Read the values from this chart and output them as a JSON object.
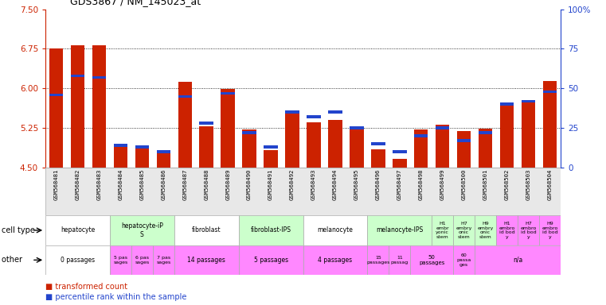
{
  "title": "GDS3867 / NM_145023_at",
  "samples": [
    "GSM568481",
    "GSM568482",
    "GSM568483",
    "GSM568484",
    "GSM568485",
    "GSM568486",
    "GSM568487",
    "GSM568488",
    "GSM568489",
    "GSM568490",
    "GSM568491",
    "GSM568492",
    "GSM568493",
    "GSM568494",
    "GSM568495",
    "GSM568496",
    "GSM568497",
    "GSM568498",
    "GSM568499",
    "GSM568500",
    "GSM568501",
    "GSM568502",
    "GSM568503",
    "GSM568504"
  ],
  "red_values": [
    6.75,
    6.82,
    6.81,
    4.93,
    4.88,
    4.77,
    6.13,
    5.28,
    5.99,
    5.23,
    4.83,
    5.55,
    5.36,
    5.41,
    5.26,
    4.85,
    4.67,
    5.22,
    5.31,
    5.19,
    5.24,
    5.72,
    5.76,
    6.14
  ],
  "blue_values": [
    46,
    58,
    57,
    14,
    13,
    10,
    45,
    28,
    47,
    22,
    13,
    35,
    32,
    35,
    25,
    15,
    10,
    20,
    25,
    17,
    22,
    40,
    42,
    48
  ],
  "ylim_left": [
    4.5,
    7.5
  ],
  "ylim_right": [
    0,
    100
  ],
  "yticks_left": [
    4.5,
    5.25,
    6.0,
    6.75,
    7.5
  ],
  "yticks_right": [
    0,
    25,
    50,
    75,
    100
  ],
  "bar_width": 0.65,
  "red_color": "#cc2200",
  "blue_color": "#2244cc",
  "cell_type_groups": [
    {
      "label": "hepatocyte",
      "cols": [
        0,
        1,
        2
      ],
      "color": "#ffffff"
    },
    {
      "label": "hepatocyte-iP\nS",
      "cols": [
        3,
        4,
        5
      ],
      "color": "#ccffcc"
    },
    {
      "label": "fibroblast",
      "cols": [
        6,
        7,
        8
      ],
      "color": "#ffffff"
    },
    {
      "label": "fibroblast-IPS",
      "cols": [
        9,
        10,
        11
      ],
      "color": "#ccffcc"
    },
    {
      "label": "melanocyte",
      "cols": [
        12,
        13,
        14
      ],
      "color": "#ffffff"
    },
    {
      "label": "melanocyte-IPS",
      "cols": [
        15,
        16,
        17
      ],
      "color": "#ccffcc"
    },
    {
      "label": "H1\nembr\nyonic\nstem",
      "cols": [
        18
      ],
      "color": "#ccffcc"
    },
    {
      "label": "H7\nembry\nonic\nstem",
      "cols": [
        19
      ],
      "color": "#ccffcc"
    },
    {
      "label": "H9\nembry\nonic\nstem",
      "cols": [
        20
      ],
      "color": "#ccffcc"
    },
    {
      "label": "H1\nembro\nid bod\ny",
      "cols": [
        21
      ],
      "color": "#ff88ff"
    },
    {
      "label": "H7\nembro\nid bod\ny",
      "cols": [
        22
      ],
      "color": "#ff88ff"
    },
    {
      "label": "H9\nembro\nid bod\ny",
      "cols": [
        23
      ],
      "color": "#ff88ff"
    }
  ],
  "other_groups": [
    {
      "label": "0 passages",
      "cols": [
        0,
        1,
        2
      ],
      "color": "#ffffff"
    },
    {
      "label": "5 pas\nsages",
      "cols": [
        3
      ],
      "color": "#ff88ff"
    },
    {
      "label": "6 pas\nsages",
      "cols": [
        4
      ],
      "color": "#ff88ff"
    },
    {
      "label": "7 pas\nsages",
      "cols": [
        5
      ],
      "color": "#ff88ff"
    },
    {
      "label": "14 passages",
      "cols": [
        6,
        7,
        8
      ],
      "color": "#ff88ff"
    },
    {
      "label": "5 passages",
      "cols": [
        9,
        10,
        11
      ],
      "color": "#ff88ff"
    },
    {
      "label": "4 passages",
      "cols": [
        12,
        13,
        14
      ],
      "color": "#ff88ff"
    },
    {
      "label": "15\npassages",
      "cols": [
        15
      ],
      "color": "#ff88ff"
    },
    {
      "label": "11\npassag",
      "cols": [
        16
      ],
      "color": "#ff88ff"
    },
    {
      "label": "50\npassages",
      "cols": [
        17,
        18
      ],
      "color": "#ff88ff"
    },
    {
      "label": "60\npassa\nges",
      "cols": [
        19
      ],
      "color": "#ff88ff"
    },
    {
      "label": "n/a",
      "cols": [
        20,
        21,
        22,
        23
      ],
      "color": "#ff88ff"
    }
  ]
}
